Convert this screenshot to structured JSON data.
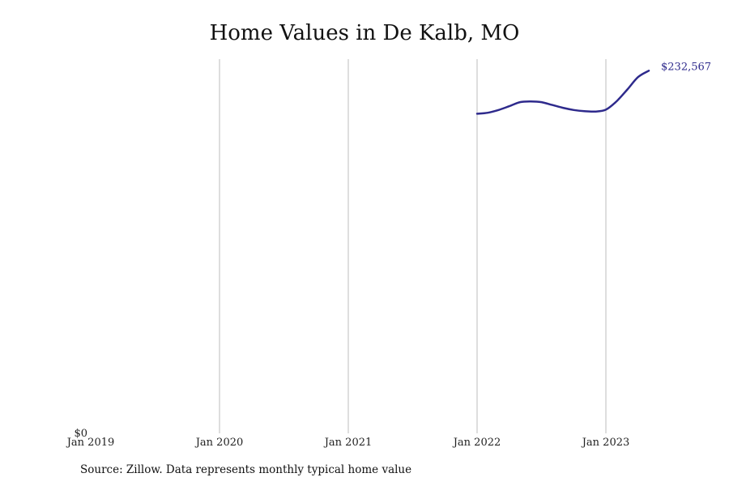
{
  "colors": {
    "line": "#2e2a8c",
    "grid": "#bdbdbd",
    "text": "#111111"
  },
  "chart_data": {
    "type": "line",
    "title": "Home Values in De Kalb, MO",
    "xlabel": "",
    "ylabel": "",
    "x_tick_labels": [
      "Jan 2019",
      "Jan 2020",
      "Jan 2021",
      "Jan 2022",
      "Jan 2023"
    ],
    "x_range": [
      "2019-01",
      "2023-09"
    ],
    "y_tick_labels": [
      "$0"
    ],
    "ylim": [
      0,
      240000
    ],
    "grid": "vertical gridlines at year ticks",
    "series": [
      {
        "x": [
          "2022-01",
          "2022-02",
          "2022-03",
          "2022-04",
          "2022-05",
          "2022-06",
          "2022-07",
          "2022-08",
          "2022-09",
          "2022-10",
          "2022-11",
          "2022-12",
          "2023-01",
          "2023-02",
          "2023-03",
          "2023-04",
          "2023-05"
        ],
        "values": [
          205000,
          205600,
          207400,
          209800,
          212400,
          212900,
          212400,
          210600,
          208800,
          207400,
          206600,
          206400,
          207600,
          213000,
          220500,
          228500,
          232567
        ]
      }
    ],
    "end_label": "$232,567",
    "source": "Source: Zillow. Data represents monthly typical home value"
  }
}
